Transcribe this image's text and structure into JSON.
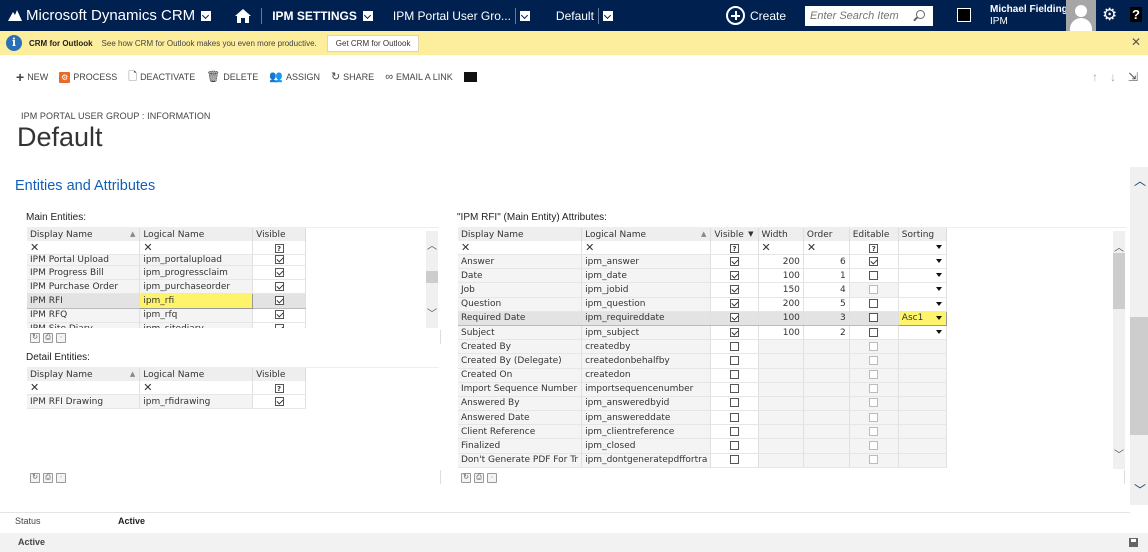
{
  "navbar": {
    "app_name": "Microsoft Dynamics CRM",
    "area": "IPM SETTINGS",
    "entity": "IPM Portal User Gro...",
    "record": "Default",
    "create_label": "Create",
    "search_placeholder": "Enter Search Item",
    "user_name": "Michael Fielding",
    "user_org": "IPM",
    "gear_glyph": "⚙",
    "help_glyph": "?"
  },
  "notification": {
    "info_glyph": "i",
    "title": "CRM for Outlook",
    "text": "See how CRM for Outlook makes you even more productive.",
    "button": "Get CRM for Outlook",
    "close_glyph": "✕"
  },
  "commands": [
    {
      "label": "NEW",
      "icon": "plus-icon",
      "glyph": "+"
    },
    {
      "label": "PROCESS",
      "icon": "process-icon",
      "glyph": "⚙"
    },
    {
      "label": "DEACTIVATE",
      "icon": "deactivate-icon",
      "glyph": "🗋"
    },
    {
      "label": "DELETE",
      "icon": "trash-icon",
      "glyph": "🗑"
    },
    {
      "label": "ASSIGN",
      "icon": "assign-icon",
      "glyph": "👥"
    },
    {
      "label": "SHARE",
      "icon": "share-icon",
      "glyph": "↻"
    },
    {
      "label": "EMAIL A LINK",
      "icon": "link-icon",
      "glyph": "∞"
    }
  ],
  "record_nav": {
    "up": "↑",
    "down": "↓",
    "popout": "⇲"
  },
  "header": {
    "breadcrumb": "IPM PORTAL USER GROUP : INFORMATION",
    "title": "Default",
    "section": "Entities and Attributes"
  },
  "main_entities": {
    "label": "Main Entities:",
    "columns": [
      "Display Name",
      "Logical Name",
      "Visible"
    ],
    "filter_x": "✕",
    "rows": [
      {
        "display": "IPM Portal Upload",
        "logical": "ipm_portalupload",
        "visible": true
      },
      {
        "display": "IPM Progress Bill",
        "logical": "ipm_progressclaim",
        "visible": true
      },
      {
        "display": "IPM Purchase Order",
        "logical": "ipm_purchaseorder",
        "visible": true
      },
      {
        "display": "IPM RFI",
        "logical": "ipm_rfi",
        "visible": true,
        "selected": true
      },
      {
        "display": "IPM RFQ",
        "logical": "ipm_rfq",
        "visible": true
      },
      {
        "display": "IPM Site Diary",
        "logical": "ipm_sitediary",
        "visible": true
      }
    ]
  },
  "detail_entities": {
    "label": "Detail Entities:",
    "columns": [
      "Display Name",
      "Logical Name",
      "Visible"
    ],
    "rows": [
      {
        "display": "IPM RFI Drawing",
        "logical": "ipm_rfidrawing",
        "visible": true
      }
    ]
  },
  "attributes": {
    "label": "\"IPM RFI\" (Main Entity) Attributes:",
    "columns": [
      "Display Name",
      "Logical Name",
      "Visible",
      "Width",
      "Order",
      "Editable",
      "Sorting"
    ],
    "rows": [
      {
        "display": "Answer",
        "logical": "ipm_answer",
        "visible": true,
        "width": "200",
        "order": "6",
        "editable": "checked",
        "sorting": ""
      },
      {
        "display": "Date",
        "logical": "ipm_date",
        "visible": true,
        "width": "100",
        "order": "1",
        "editable": "unchecked",
        "sorting": ""
      },
      {
        "display": "Job",
        "logical": "ipm_jobid",
        "visible": true,
        "width": "150",
        "order": "4",
        "editable": "disabled",
        "sorting": ""
      },
      {
        "display": "Question",
        "logical": "ipm_question",
        "visible": true,
        "width": "200",
        "order": "5",
        "editable": "unchecked",
        "sorting": ""
      },
      {
        "display": "Required Date",
        "logical": "ipm_requireddate",
        "visible": true,
        "width": "100",
        "order": "3",
        "editable": "unchecked",
        "sorting": "Asc1",
        "selected": true
      },
      {
        "display": "Subject",
        "logical": "ipm_subject",
        "visible": true,
        "width": "100",
        "order": "2",
        "editable": "unchecked",
        "sorting": ""
      },
      {
        "display": "Created By",
        "logical": "createdby",
        "visible": false,
        "width": "",
        "order": "",
        "editable": "disabled",
        "sorting": null
      },
      {
        "display": "Created By (Delegate)",
        "logical": "createdonbehalfby",
        "visible": false,
        "width": "",
        "order": "",
        "editable": "disabled",
        "sorting": null
      },
      {
        "display": "Created On",
        "logical": "createdon",
        "visible": false,
        "width": "",
        "order": "",
        "editable": "disabled",
        "sorting": null
      },
      {
        "display": "Import Sequence Number",
        "logical": "importsequencenumber",
        "visible": false,
        "width": "",
        "order": "",
        "editable": "disabled",
        "sorting": null
      },
      {
        "display": "Answered By",
        "logical": "ipm_answeredbyid",
        "visible": false,
        "width": "",
        "order": "",
        "editable": "disabled",
        "sorting": null
      },
      {
        "display": "Answered Date",
        "logical": "ipm_answereddate",
        "visible": false,
        "width": "",
        "order": "",
        "editable": "disabled",
        "sorting": null
      },
      {
        "display": "Client Reference",
        "logical": "ipm_clientreference",
        "visible": false,
        "width": "",
        "order": "",
        "editable": "disabled",
        "sorting": null
      },
      {
        "display": "Finalized",
        "logical": "ipm_closed",
        "visible": false,
        "width": "",
        "order": "",
        "editable": "disabled",
        "sorting": null
      },
      {
        "display": "Don't Generate PDF For Tr",
        "logical": "ipm_dontgeneratepdffortra",
        "visible": false,
        "width": "",
        "order": "",
        "editable": "disabled",
        "sorting": null
      }
    ]
  },
  "footer": {
    "status_label": "Status",
    "status_value": "Active",
    "statusbar_text": "Active"
  }
}
